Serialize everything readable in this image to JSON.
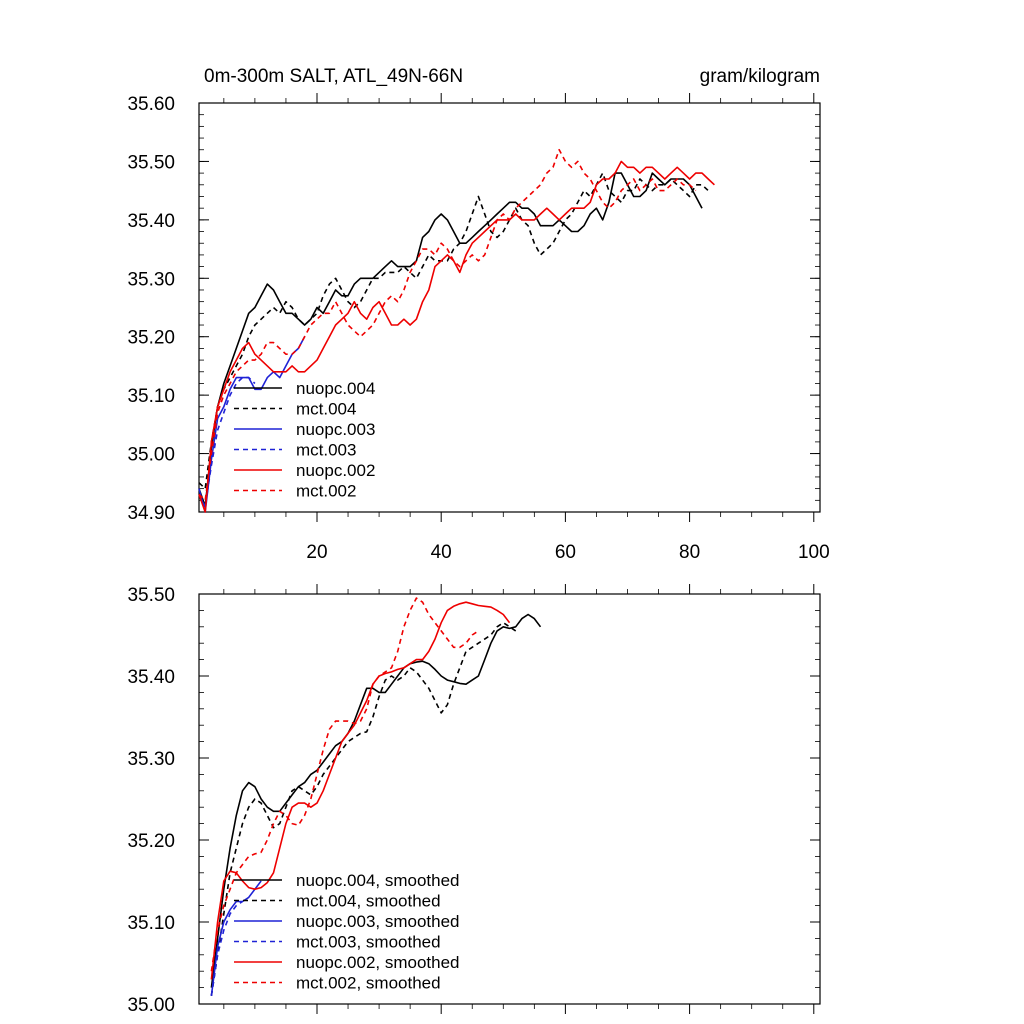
{
  "chart_data": [
    {
      "type": "line",
      "title": "0m-300m SALT, ATL_49N-66N",
      "units": "gram/kilogram",
      "xlim": [
        1,
        101
      ],
      "ylim": [
        34.9,
        35.6
      ],
      "yticks": [
        "35.60",
        "35.50",
        "35.40",
        "35.30",
        "35.20",
        "35.10",
        "35.00",
        "34.90"
      ],
      "xticks": [
        "20",
        "40",
        "60",
        "80",
        "100"
      ],
      "legend_position": "lower-left",
      "series": [
        {
          "name": "nuopc.004",
          "color": "#000000",
          "dash": "solid",
          "x_start": 1,
          "values": [
            34.94,
            34.91,
            35.01,
            35.08,
            35.12,
            35.15,
            35.18,
            35.21,
            35.24,
            35.25,
            35.27,
            35.29,
            35.28,
            35.26,
            35.24,
            35.24,
            35.23,
            35.22,
            35.23,
            35.25,
            35.24,
            35.26,
            35.28,
            35.27,
            35.27,
            35.29,
            35.3,
            35.3,
            35.3,
            35.31,
            35.32,
            35.33,
            35.32,
            35.32,
            35.32,
            35.33,
            35.37,
            35.38,
            35.4,
            35.41,
            35.4,
            35.38,
            35.36,
            35.36,
            35.37,
            35.38,
            35.39,
            35.4,
            35.41,
            35.42,
            35.43,
            35.43,
            35.42,
            35.42,
            35.41,
            35.39,
            35.39,
            35.39,
            35.4,
            35.39,
            35.38,
            35.38,
            35.39,
            35.41,
            35.42,
            35.4,
            35.43,
            35.48,
            35.48,
            35.46,
            35.44,
            35.44,
            35.45,
            35.48,
            35.47,
            35.46,
            35.47,
            35.47,
            35.47,
            35.46,
            35.44,
            35.42
          ],
          "x_offset": 20
        },
        {
          "name": "mct.004",
          "color": "#000000",
          "dash": "dashed",
          "x_start": 1,
          "values": [
            34.95,
            34.94,
            35.02,
            35.08,
            35.11,
            35.13,
            35.15,
            35.17,
            35.2,
            35.22,
            35.23,
            35.24,
            35.25,
            35.24,
            35.26,
            35.25,
            35.23,
            35.22,
            35.23,
            35.24,
            35.27,
            35.29,
            35.3,
            35.28,
            35.26,
            35.25,
            35.26,
            35.28,
            35.3,
            35.3,
            35.31,
            35.31,
            35.31,
            35.32,
            35.31,
            35.3,
            35.32,
            35.34,
            35.33,
            35.33,
            35.33,
            35.35,
            35.36,
            35.38,
            35.41,
            35.44,
            35.41,
            35.38,
            35.37,
            35.38,
            35.4,
            35.42,
            35.4,
            35.39,
            35.36,
            35.34,
            35.35,
            35.36,
            35.38,
            35.4,
            35.41,
            35.43,
            35.45,
            35.44,
            35.46,
            35.48,
            35.45,
            35.44,
            35.43,
            35.45,
            35.45,
            35.47,
            35.46,
            35.45,
            35.46,
            35.46,
            35.47,
            35.46,
            35.45,
            35.44,
            35.46,
            35.46,
            35.45
          ]
        },
        {
          "name": "nuopc.003",
          "color": "#1f22d6",
          "dash": "solid",
          "x_start": 1,
          "values": [
            34.94,
            34.9,
            34.99,
            35.06,
            35.08,
            35.11,
            35.13,
            35.13,
            35.13,
            35.11,
            35.11,
            35.13,
            35.14,
            35.13,
            35.15,
            35.17,
            35.18,
            35.2
          ]
        },
        {
          "name": "mct.003",
          "color": "#1f22d6",
          "dash": "dashed",
          "x_start": 1,
          "values": [
            34.93,
            34.91,
            34.98,
            35.04,
            35.07,
            35.1,
            35.12,
            35.13,
            35.13,
            35.12
          ]
        },
        {
          "name": "nuopc.002",
          "color": "#ee0000",
          "dash": "solid",
          "x_start": 1,
          "values": [
            34.93,
            34.9,
            35.02,
            35.08,
            35.11,
            35.14,
            35.16,
            35.18,
            35.19,
            35.17,
            35.16,
            35.15,
            35.14,
            35.14,
            35.14,
            35.15,
            35.14,
            35.14,
            35.15,
            35.16,
            35.18,
            35.2,
            35.22,
            35.23,
            35.24,
            35.26,
            35.24,
            35.23,
            35.25,
            35.26,
            35.24,
            35.22,
            35.22,
            35.23,
            35.22,
            35.23,
            35.26,
            35.28,
            35.32,
            35.33,
            35.34,
            35.33,
            35.31,
            35.34,
            35.36,
            35.37,
            35.38,
            35.39,
            35.4,
            35.4,
            35.4,
            35.41,
            35.4,
            35.4,
            35.4,
            35.41,
            35.42,
            35.41,
            35.4,
            35.41,
            35.42,
            35.42,
            35.42,
            35.43,
            35.46,
            35.47,
            35.47,
            35.48,
            35.5,
            35.49,
            35.49,
            35.48,
            35.49,
            35.49,
            35.48,
            35.47,
            35.48,
            35.49,
            35.48,
            35.47,
            35.48,
            35.48,
            35.47,
            35.46
          ]
        },
        {
          "name": "mct.002",
          "color": "#ee0000",
          "dash": "dashed",
          "x_start": 1,
          "values": [
            34.93,
            34.92,
            35.0,
            35.07,
            35.1,
            35.12,
            35.14,
            35.15,
            35.16,
            35.16,
            35.17,
            35.19,
            35.19,
            35.18,
            35.17,
            35.17,
            35.18,
            35.2,
            35.22,
            35.23,
            35.24,
            35.24,
            35.26,
            35.24,
            35.22,
            35.21,
            35.2,
            35.21,
            35.22,
            35.24,
            35.26,
            35.27,
            35.26,
            35.28,
            35.31,
            35.33,
            35.35,
            35.35,
            35.34,
            35.36,
            35.35,
            35.33,
            35.32,
            35.33,
            35.34,
            35.33,
            35.34,
            35.37,
            35.4,
            35.41,
            35.4,
            35.42,
            35.43,
            35.44,
            35.45,
            35.46,
            35.48,
            35.49,
            35.52,
            35.5,
            35.49,
            35.5,
            35.48,
            35.47,
            35.45,
            35.43,
            35.42,
            35.43,
            35.45,
            35.46,
            35.47,
            35.45,
            35.46,
            35.47,
            35.45,
            35.45,
            35.46,
            35.47,
            35.46,
            35.46,
            35.45
          ]
        }
      ]
    },
    {
      "type": "line",
      "title": "",
      "xlim": [
        1,
        101
      ],
      "ylim": [
        35.0,
        35.5
      ],
      "yticks": [
        "35.50",
        "35.40",
        "35.30",
        "35.20",
        "35.10",
        "35.00"
      ],
      "legend_position": "lower-left",
      "series": [
        {
          "name": "nuopc.004, smoothed",
          "color": "#000000",
          "dash": "solid",
          "x_start": 3,
          "values": [
            35.02,
            35.08,
            35.14,
            35.19,
            35.23,
            35.26,
            35.27,
            35.265,
            35.25,
            35.24,
            35.235,
            35.235,
            35.245,
            35.255,
            35.265,
            35.27,
            35.28,
            35.285,
            35.295,
            35.305,
            35.315,
            35.32,
            35.33,
            35.345,
            35.365,
            35.385,
            35.385,
            35.38,
            35.38,
            35.39,
            35.4,
            35.41,
            35.415,
            35.417,
            35.418,
            35.415,
            35.408,
            35.4,
            35.395,
            35.393,
            35.391,
            35.39,
            35.395,
            35.4,
            35.42,
            35.44,
            35.455,
            35.46,
            35.458,
            35.46,
            35.47,
            35.475,
            35.47,
            35.46
          ]
        },
        {
          "name": "mct.004, smoothed",
          "color": "#000000",
          "dash": "dashed",
          "x_start": 3,
          "values": [
            35.01,
            35.06,
            35.11,
            35.16,
            35.19,
            35.22,
            35.24,
            35.25,
            35.245,
            35.23,
            35.215,
            35.22,
            35.24,
            35.26,
            35.265,
            35.26,
            35.255,
            35.265,
            35.28,
            35.29,
            35.3,
            35.31,
            35.32,
            35.325,
            35.33,
            35.332,
            35.35,
            35.375,
            35.395,
            35.4,
            35.395,
            35.4,
            35.41,
            35.405,
            35.395,
            35.385,
            35.37,
            35.355,
            35.365,
            35.39,
            35.41,
            35.43,
            35.435,
            35.44,
            35.445,
            35.45,
            35.46,
            35.465,
            35.46,
            35.455
          ]
        },
        {
          "name": "nuopc.003, smoothed",
          "color": "#1f22d6",
          "dash": "solid",
          "x_start": 3,
          "values": [
            35.01,
            35.07,
            35.1,
            35.115,
            35.125,
            35.125,
            35.13,
            35.14,
            35.15
          ]
        },
        {
          "name": "mct.003, smoothed",
          "color": "#1f22d6",
          "dash": "dashed",
          "x_start": 3,
          "values": [
            35.01,
            35.06,
            35.09,
            35.11,
            35.12,
            35.125
          ]
        },
        {
          "name": "nuopc.002, smoothed",
          "color": "#ee0000",
          "dash": "solid",
          "x_start": 3,
          "values": [
            35.03,
            35.1,
            35.15,
            35.162,
            35.16,
            35.15,
            35.142,
            35.14,
            35.142,
            35.148,
            35.16,
            35.19,
            35.22,
            35.24,
            35.245,
            35.245,
            35.24,
            35.245,
            35.26,
            35.28,
            35.3,
            35.32,
            35.33,
            35.34,
            35.355,
            35.37,
            35.39,
            35.4,
            35.403,
            35.405,
            35.408,
            35.41,
            35.415,
            35.42,
            35.42,
            35.43,
            35.445,
            35.465,
            35.48,
            35.485,
            35.488,
            35.49,
            35.488,
            35.486,
            35.485,
            35.484,
            35.48,
            35.475,
            35.465
          ]
        },
        {
          "name": "mct.002, smoothed",
          "color": "#ee0000",
          "dash": "dashed",
          "x_start": 3,
          "values": [
            35.04,
            35.09,
            35.12,
            35.14,
            35.16,
            35.17,
            35.18,
            35.183,
            35.185,
            35.2,
            35.22,
            35.235,
            35.23,
            35.22,
            35.218,
            35.23,
            35.25,
            35.28,
            35.31,
            35.335,
            35.345,
            35.345,
            35.345,
            35.342,
            35.345,
            35.36,
            35.39,
            35.4,
            35.405,
            35.41,
            35.43,
            35.46,
            35.48,
            35.495,
            35.49,
            35.475,
            35.465,
            35.455,
            35.445,
            35.435,
            35.435,
            35.44,
            35.45,
            35.455
          ]
        }
      ]
    }
  ]
}
